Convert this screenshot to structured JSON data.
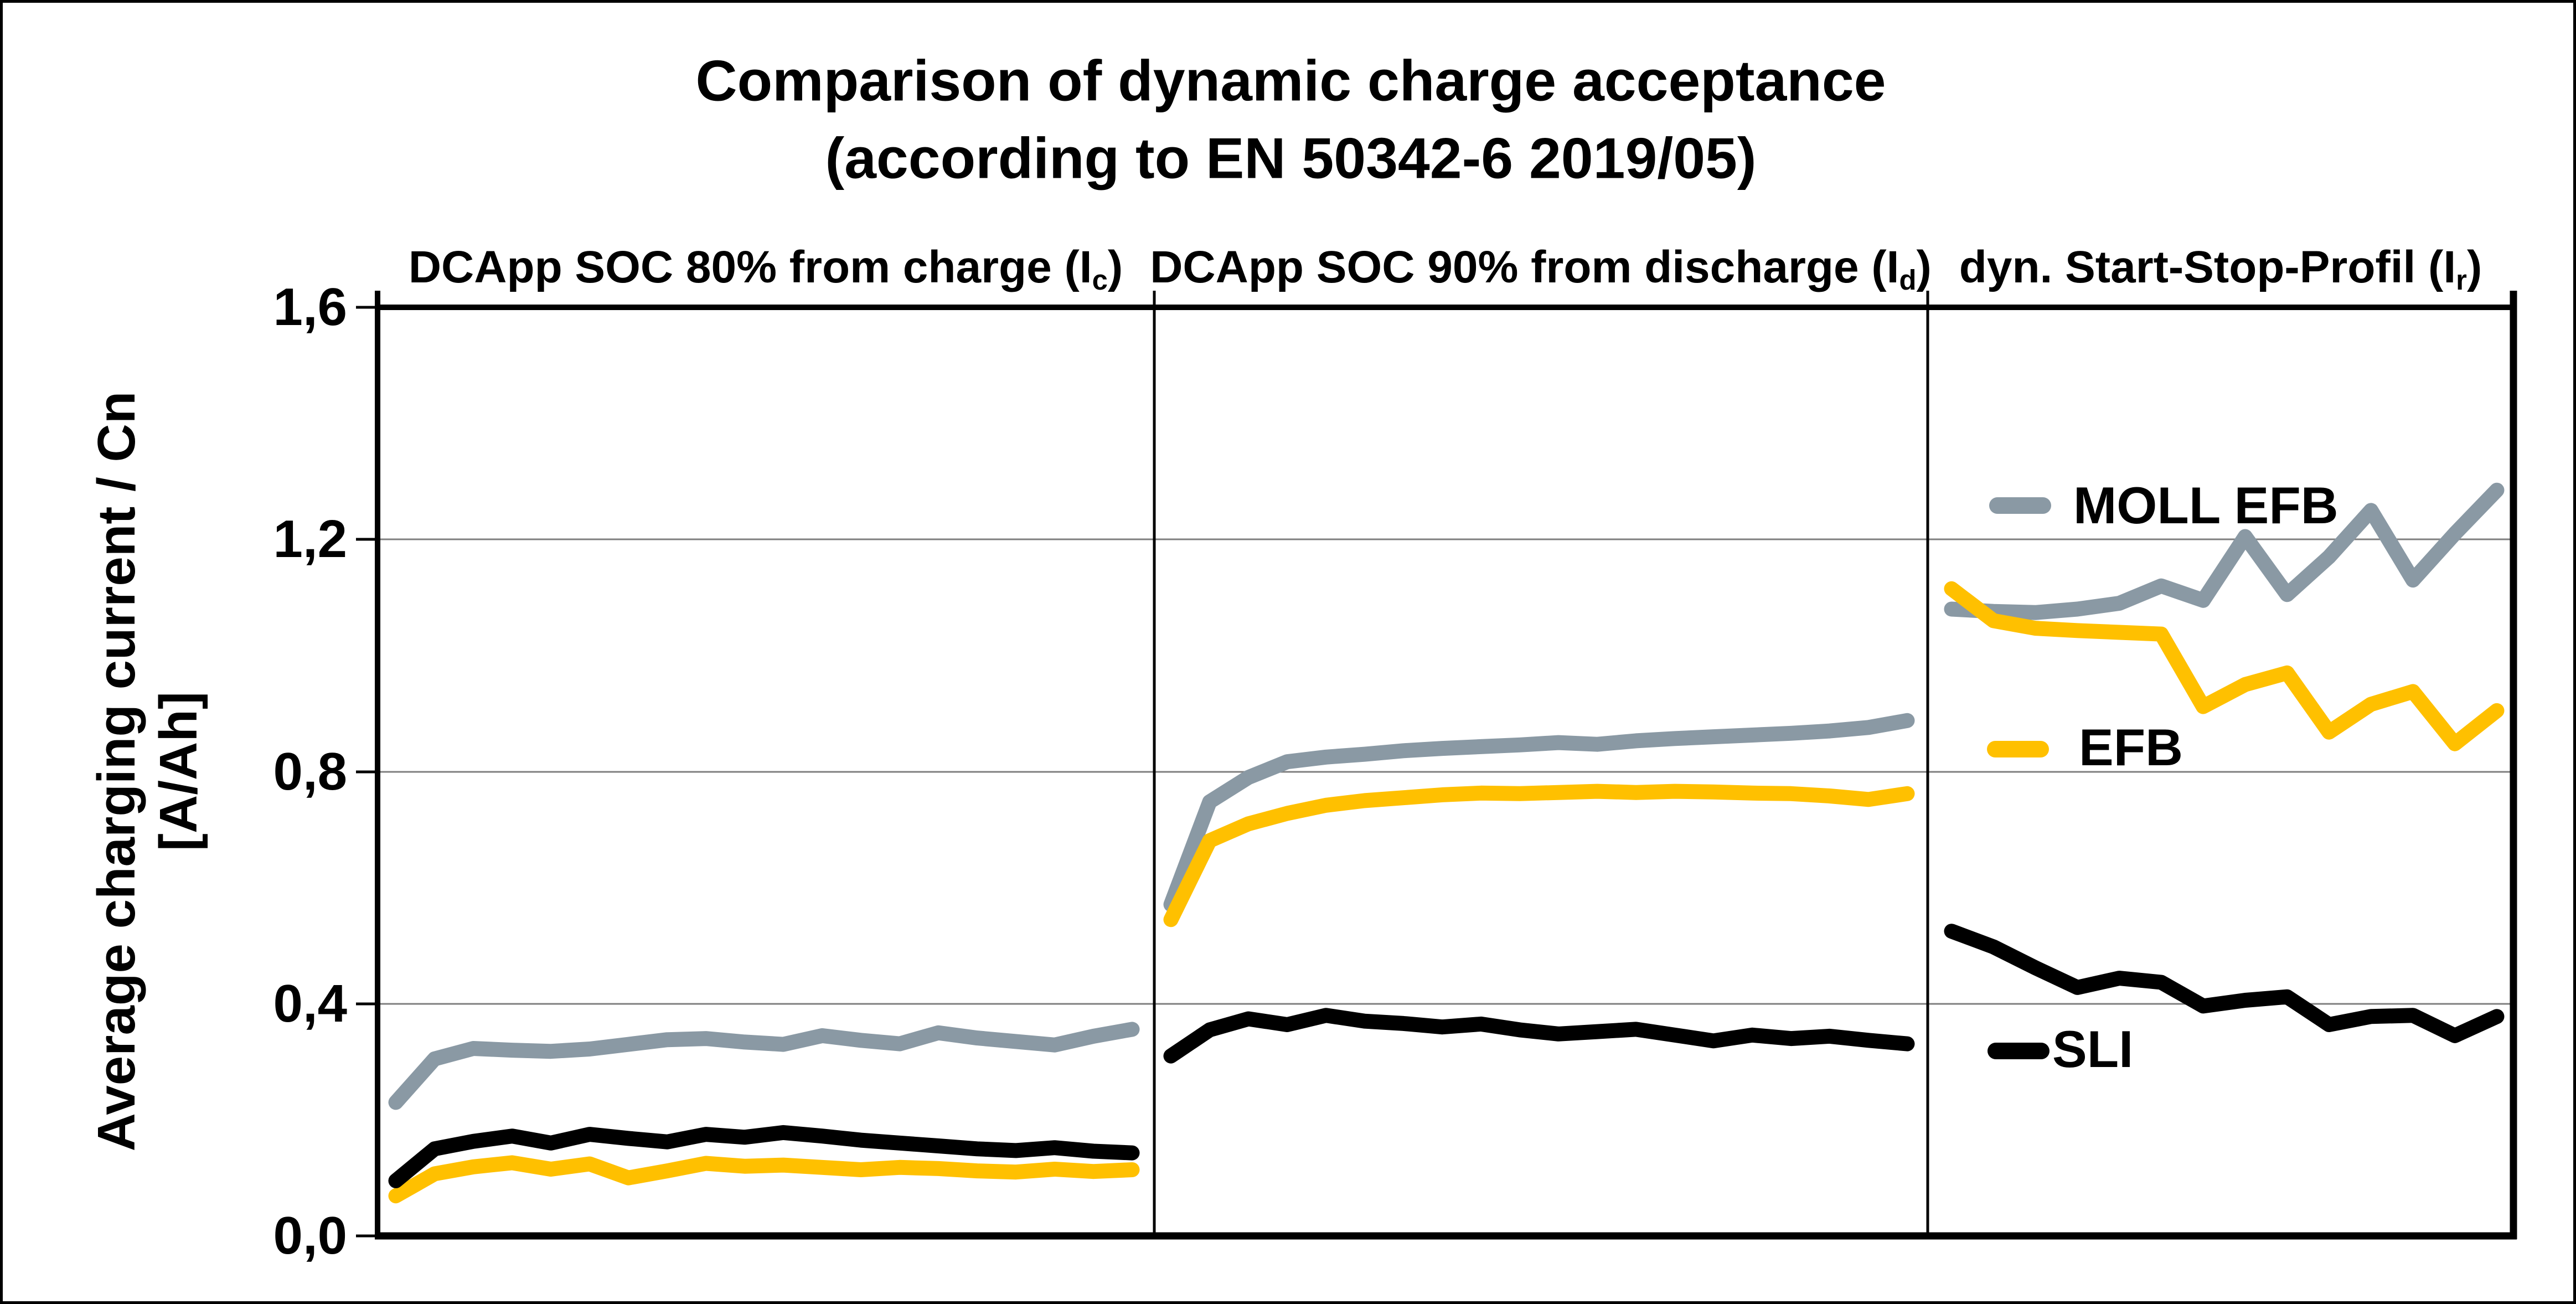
{
  "title": {
    "line1": "Comparison of dynamic charge acceptance",
    "line2": "(according to EN 50342-6 2019/05)"
  },
  "y_axis": {
    "label_line1": "Average charging current / Cn",
    "label_line2": "[A/Ah]",
    "ticks": [
      "1,6",
      "1,2",
      "0,8",
      "0,4",
      "0,0"
    ]
  },
  "legend": [
    {
      "label": "MOLL EFB",
      "color": "#8A99A4"
    },
    {
      "label": "EFB",
      "color": "#FFC000"
    },
    {
      "label": "SLI",
      "color": "#000000"
    }
  ],
  "chart_data": {
    "type": "line",
    "title": "Comparison of dynamic charge acceptance (according to EN 50342-6 2019/05)",
    "ylabel": "Average charging current / Cn [A/Ah]",
    "ylim": [
      0.0,
      1.6
    ],
    "yticks": [
      0.0,
      0.4,
      0.8,
      1.2,
      1.6
    ],
    "grid": "horizontal",
    "legend_position": "overlay-right-panel",
    "panels": [
      {
        "header": {
          "text": "DCApp SOC 80% from charge (I",
          "sub": "c",
          "suffix": ")"
        },
        "series": [
          {
            "name": "MOLL EFB",
            "values": [
              0.23,
              0.305,
              0.323,
              0.32,
              0.318,
              0.322,
              0.33,
              0.338,
              0.34,
              0.334,
              0.33,
              0.345,
              0.337,
              0.331,
              0.35,
              0.341,
              0.335,
              0.329,
              0.344,
              0.356
            ]
          },
          {
            "name": "EFB",
            "values": [
              0.069,
              0.107,
              0.119,
              0.126,
              0.115,
              0.124,
              0.1,
              0.112,
              0.125,
              0.12,
              0.122,
              0.118,
              0.114,
              0.118,
              0.116,
              0.112,
              0.11,
              0.115,
              0.111,
              0.114
            ]
          },
          {
            "name": "SLI",
            "values": [
              0.095,
              0.15,
              0.163,
              0.172,
              0.16,
              0.175,
              0.168,
              0.162,
              0.175,
              0.17,
              0.178,
              0.172,
              0.165,
              0.16,
              0.155,
              0.15,
              0.147,
              0.152,
              0.146,
              0.143
            ]
          }
        ]
      },
      {
        "header": {
          "text": "DCApp SOC 90% from discharge (I",
          "sub": "d",
          "suffix": ")"
        },
        "series": [
          {
            "name": "MOLL EFB",
            "values": [
              0.571,
              0.748,
              0.79,
              0.817,
              0.825,
              0.83,
              0.836,
              0.84,
              0.843,
              0.846,
              0.85,
              0.847,
              0.853,
              0.857,
              0.86,
              0.863,
              0.866,
              0.87,
              0.876,
              0.888
            ]
          },
          {
            "name": "EFB",
            "values": [
              0.545,
              0.681,
              0.71,
              0.728,
              0.742,
              0.75,
              0.755,
              0.76,
              0.763,
              0.762,
              0.764,
              0.766,
              0.764,
              0.766,
              0.765,
              0.763,
              0.762,
              0.758,
              0.752,
              0.762
            ]
          },
          {
            "name": "SLI",
            "values": [
              0.31,
              0.355,
              0.374,
              0.364,
              0.38,
              0.37,
              0.366,
              0.36,
              0.365,
              0.355,
              0.348,
              0.352,
              0.356,
              0.346,
              0.336,
              0.346,
              0.34,
              0.344,
              0.337,
              0.331
            ]
          }
        ]
      },
      {
        "header": {
          "text": "dyn. Start-Stop-Profil (I",
          "sub": "r",
          "suffix": ")"
        },
        "series": [
          {
            "name": "MOLL EFB",
            "values": [
              1.08,
              1.076,
              1.074,
              1.08,
              1.09,
              1.12,
              1.095,
              1.205,
              1.105,
              1.17,
              1.25,
              1.13,
              1.21,
              1.285
            ]
          },
          {
            "name": "EFB",
            "values": [
              1.115,
              1.06,
              1.047,
              1.043,
              1.04,
              1.037,
              0.912,
              0.95,
              0.97,
              0.868,
              0.916,
              0.938,
              0.848,
              0.905
            ]
          },
          {
            "name": "SLI",
            "values": [
              0.525,
              0.498,
              0.462,
              0.428,
              0.444,
              0.437,
              0.396,
              0.406,
              0.412,
              0.364,
              0.378,
              0.38,
              0.345,
              0.378
            ]
          }
        ]
      }
    ]
  }
}
